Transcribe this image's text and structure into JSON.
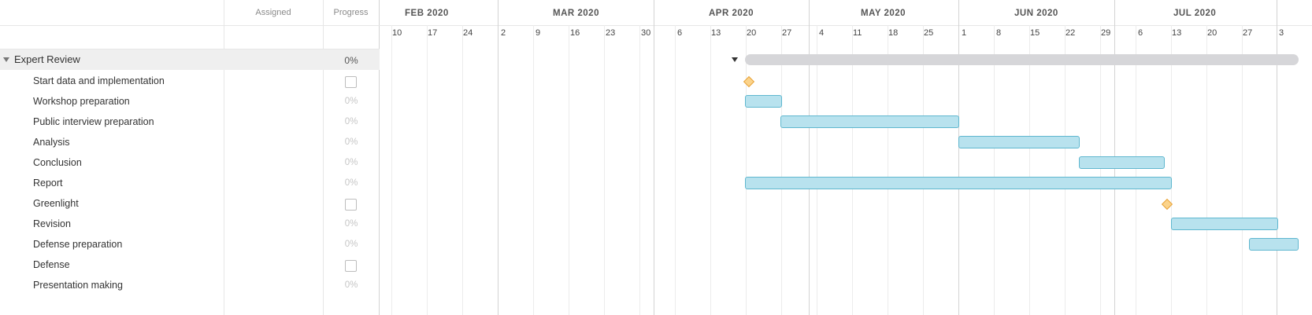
{
  "headers": {
    "assigned": "Assigned",
    "progress": "Progress"
  },
  "group": {
    "label": "Expert Review",
    "progress": "0%"
  },
  "tasks": [
    {
      "label": "Start data and implementation",
      "progress": "",
      "milestone": true
    },
    {
      "label": "Workshop preparation",
      "progress": "0%"
    },
    {
      "label": "Public interview preparation",
      "progress": "0%"
    },
    {
      "label": "Analysis",
      "progress": "0%"
    },
    {
      "label": "Conclusion",
      "progress": "0%"
    },
    {
      "label": "Report",
      "progress": "0%"
    },
    {
      "label": "Greenlight",
      "progress": "",
      "milestone": true
    },
    {
      "label": "Revision",
      "progress": "0%"
    },
    {
      "label": "Defense preparation",
      "progress": "0%"
    },
    {
      "label": "Defense",
      "progress": "",
      "milestone": true
    },
    {
      "label": "Presentation making",
      "progress": "0%"
    }
  ],
  "months": [
    "FEB 2020",
    "MAR 2020",
    "APR 2020",
    "MAY 2020",
    "JUN 2020",
    "JUL 2020"
  ],
  "days": [
    "10",
    "17",
    "24",
    "2",
    "9",
    "16",
    "23",
    "30",
    "6",
    "13",
    "20",
    "27",
    "4",
    "11",
    "18",
    "25",
    "1",
    "8",
    "15",
    "22",
    "29",
    "6",
    "13",
    "20",
    "27",
    "3"
  ],
  "colors": {
    "bar_fill": "#b8e2ee",
    "bar_border": "#5fb7cf",
    "milestone": "#fbd38a",
    "group_bar": "#d6d6d9"
  }
}
